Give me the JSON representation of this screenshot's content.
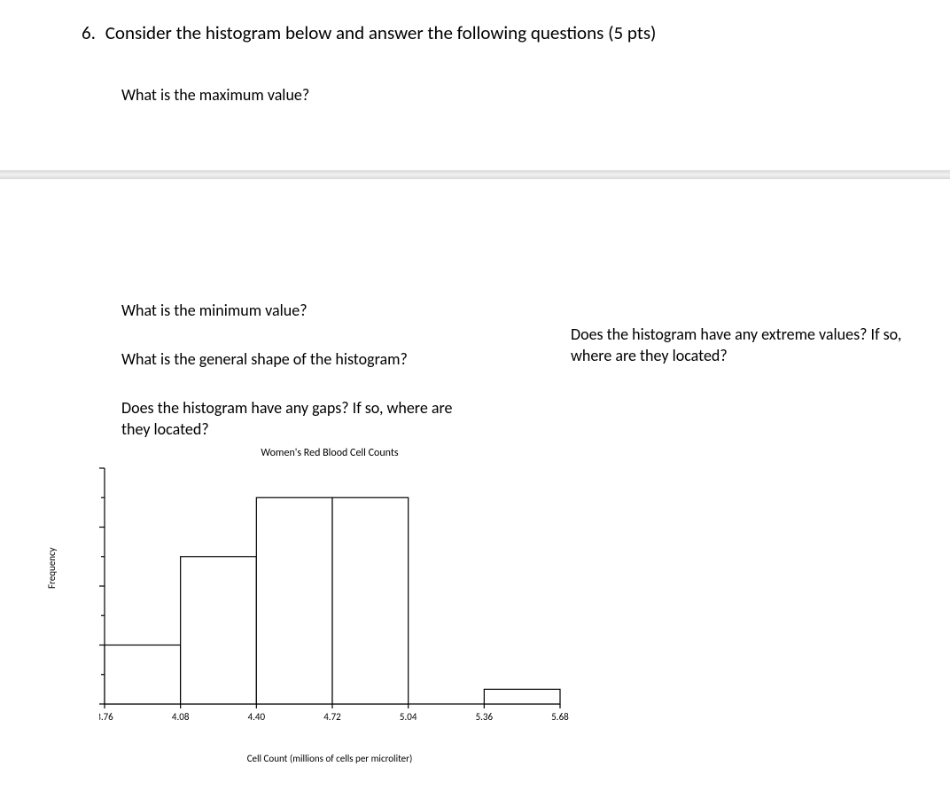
{
  "question": {
    "number": "6.",
    "text": "Consider the histogram below and answer the following questions (5 pts)"
  },
  "sub_questions": {
    "q1": "What is the maximum value?",
    "q2": "What is the minimum value?",
    "q3": "What is the general shape of the histogram?",
    "q4": "Does the histogram have any gaps? If so, where are they located?",
    "q5": "Does the histogram have any extreme values? If so, where are they located?"
  },
  "histogram": {
    "type": "histogram",
    "title": "Women's Red Blood Cell Counts",
    "ylabel": "Frequency",
    "xlabel": "Cell Count (millions of cells per microliter)",
    "y_ticks": [
      0,
      2,
      4,
      6,
      8
    ],
    "y_minor": [
      1,
      3,
      5,
      7
    ],
    "x_ticks": [
      3.76,
      4.08,
      4.4,
      4.72,
      5.04,
      5.36,
      5.68
    ],
    "x_tick_labels": [
      "3.76",
      "4.08",
      "4.40",
      "4.72",
      "5.04",
      "5.36",
      "5.68"
    ],
    "ylim": [
      0,
      8
    ],
    "bars": [
      {
        "from": 3.76,
        "to": 4.08,
        "freq": 2
      },
      {
        "from": 4.08,
        "to": 4.4,
        "freq": 5
      },
      {
        "from": 4.4,
        "to": 4.72,
        "freq": 7
      },
      {
        "from": 4.72,
        "to": 5.04,
        "freq": 7
      },
      {
        "from": 5.36,
        "to": 5.68,
        "freq": 0.5
      }
    ],
    "bar_fill": "#ffffff",
    "bar_stroke": "#000000",
    "axis_color": "#000000",
    "background": "#ffffff"
  }
}
